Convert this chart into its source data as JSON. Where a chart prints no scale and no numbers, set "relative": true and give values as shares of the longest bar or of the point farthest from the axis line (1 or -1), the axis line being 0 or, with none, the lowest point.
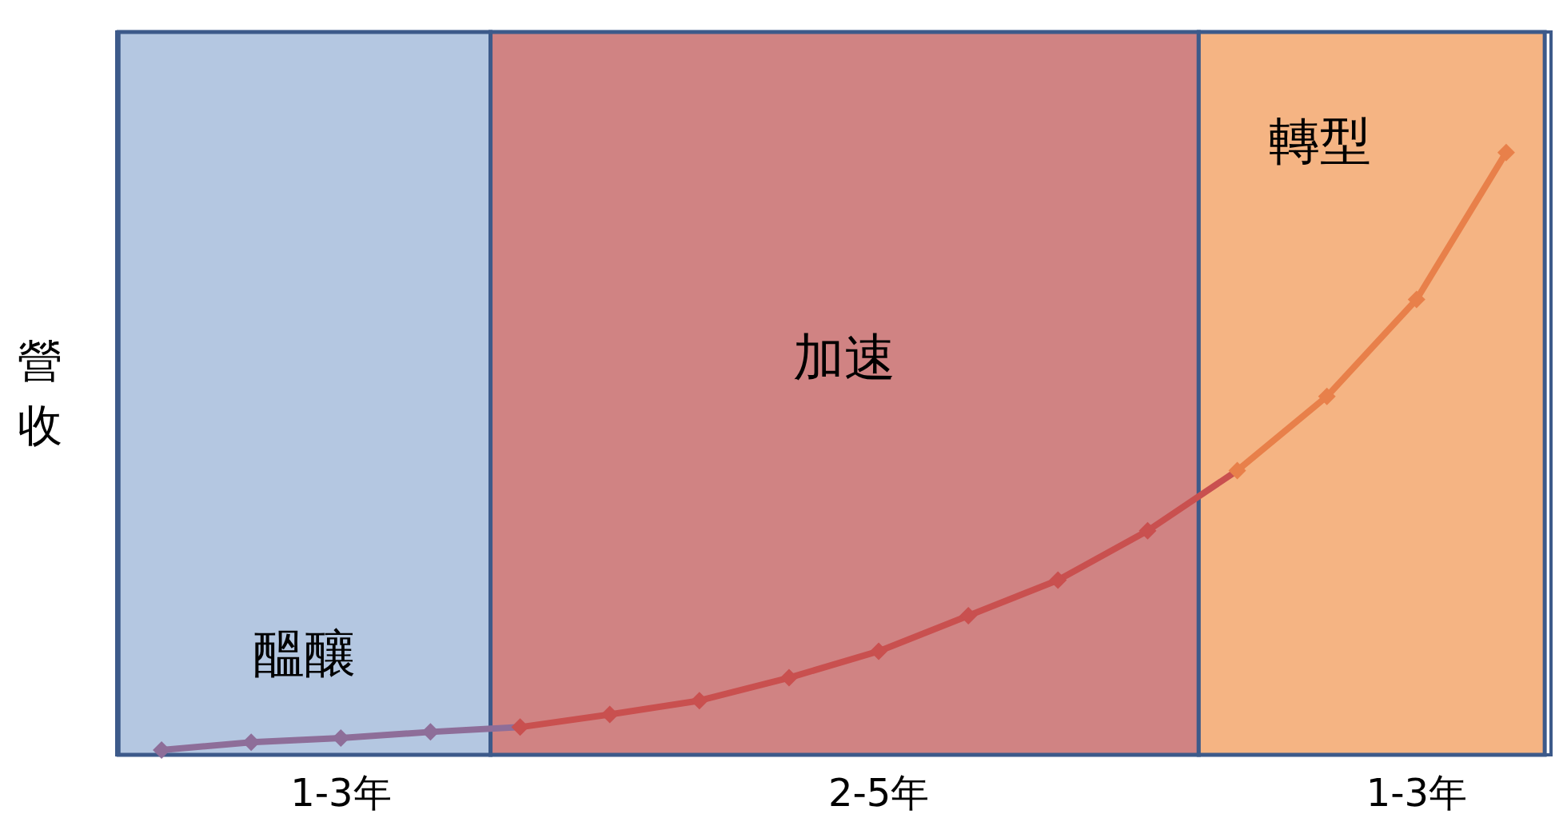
{
  "chart_data": {
    "type": "line",
    "relative": true,
    "ylabel": "營收",
    "categories": [
      null,
      null,
      "1-3年",
      null,
      null,
      null,
      null,
      null,
      "2-5年",
      null,
      null,
      null,
      null,
      null,
      "1-3年",
      null
    ],
    "values": [
      0.008,
      0.021,
      0.028,
      0.038,
      0.046,
      0.067,
      0.09,
      0.128,
      0.172,
      0.231,
      0.29,
      0.372,
      0.472,
      0.595,
      0.756,
      1
    ],
    "colors": [
      "#8e6e99",
      "#8e6e99",
      "#8e6e99",
      "#8e6e99",
      "#c9504f",
      "#c9504f",
      "#c9504f",
      "#c9504f",
      "#c9504f",
      "#c9504f",
      "#c9504f",
      "#c9504f",
      "#e8804a",
      "#e8804a",
      "#e8804a",
      "#e8804a"
    ],
    "marker": "diamond",
    "tick_labels": "x",
    "annotations": [
      "醞釀",
      "加速",
      "轉型"
    ]
  }
}
